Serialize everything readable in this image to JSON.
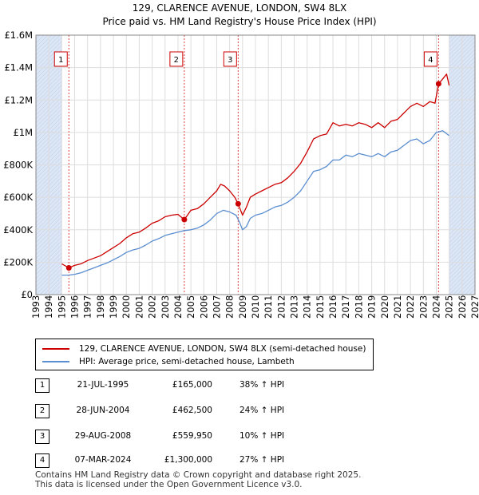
{
  "chart_data": {
    "type": "line",
    "title": "129, CLARENCE AVENUE, LONDON, SW4 8LX",
    "subtitle": "Price paid vs. HM Land Registry's House Price Index (HPI)",
    "xlim": [
      1993,
      2027
    ],
    "ylim": [
      0,
      1600000
    ],
    "y_ticks": [
      0,
      200000,
      400000,
      600000,
      800000,
      1000000,
      1200000,
      1400000,
      1600000
    ],
    "y_tick_labels": [
      "£0",
      "£200K",
      "£400K",
      "£600K",
      "£800K",
      "£1M",
      "£1.2M",
      "£1.4M",
      "£1.6M"
    ],
    "x_ticks": [
      1993,
      1994,
      1995,
      1996,
      1997,
      1998,
      1999,
      2000,
      2001,
      2002,
      2003,
      2004,
      2005,
      2006,
      2007,
      2008,
      2009,
      2010,
      2011,
      2012,
      2013,
      2014,
      2015,
      2016,
      2017,
      2018,
      2019,
      2020,
      2021,
      2022,
      2023,
      2024,
      2025,
      2026,
      2027
    ],
    "data_start": 1995.0,
    "data_end": 2025.0,
    "grid": true,
    "colors": {
      "property": "#cc0000",
      "hpi": "#5b8ed0",
      "shade": "#dce6f5",
      "sale_line": "#dd4444"
    },
    "series": [
      {
        "name": "129, CLARENCE AVENUE, LONDON, SW4 8LX (semi-detached house)",
        "x": [
          1995.0,
          1995.55,
          1996.0,
          1996.5,
          1997.0,
          1997.5,
          1998.0,
          1998.5,
          1999.0,
          1999.5,
          2000.0,
          2000.5,
          2001.0,
          2001.5,
          2002.0,
          2002.5,
          2003.0,
          2003.5,
          2004.0,
          2004.49,
          2005.0,
          2005.5,
          2006.0,
          2006.5,
          2007.0,
          2007.3,
          2007.6,
          2008.0,
          2008.4,
          2008.66,
          2009.0,
          2009.3,
          2009.6,
          2010.0,
          2010.5,
          2011.0,
          2011.5,
          2012.0,
          2012.5,
          2013.0,
          2013.5,
          2014.0,
          2014.5,
          2015.0,
          2015.5,
          2016.0,
          2016.5,
          2017.0,
          2017.5,
          2018.0,
          2018.5,
          2019.0,
          2019.5,
          2020.0,
          2020.5,
          2021.0,
          2021.5,
          2022.0,
          2022.5,
          2023.0,
          2023.5,
          2023.9,
          2024.18,
          2024.5,
          2024.8,
          2025.0
        ],
        "values": [
          190000,
          165000,
          180000,
          190000,
          210000,
          225000,
          240000,
          265000,
          290000,
          315000,
          350000,
          375000,
          385000,
          410000,
          440000,
          455000,
          480000,
          490000,
          495000,
          462500,
          520000,
          530000,
          560000,
          600000,
          640000,
          680000,
          670000,
          640000,
          600000,
          559950,
          490000,
          540000,
          600000,
          620000,
          640000,
          660000,
          680000,
          690000,
          720000,
          760000,
          810000,
          880000,
          960000,
          980000,
          990000,
          1060000,
          1040000,
          1050000,
          1040000,
          1060000,
          1050000,
          1030000,
          1060000,
          1030000,
          1070000,
          1080000,
          1120000,
          1160000,
          1180000,
          1160000,
          1190000,
          1180000,
          1300000,
          1330000,
          1360000,
          1290000
        ]
      },
      {
        "name": "HPI: Average price, semi-detached house, Lambeth",
        "x": [
          1995.0,
          1995.5,
          1996.0,
          1996.5,
          1997.0,
          1997.5,
          1998.0,
          1998.5,
          1999.0,
          1999.5,
          2000.0,
          2000.5,
          2001.0,
          2001.5,
          2002.0,
          2002.5,
          2003.0,
          2003.5,
          2004.0,
          2004.5,
          2005.0,
          2005.5,
          2006.0,
          2006.5,
          2007.0,
          2007.5,
          2008.0,
          2008.5,
          2008.8,
          2009.0,
          2009.3,
          2009.6,
          2010.0,
          2010.5,
          2011.0,
          2011.5,
          2012.0,
          2012.5,
          2013.0,
          2013.5,
          2014.0,
          2014.5,
          2015.0,
          2015.5,
          2016.0,
          2016.5,
          2017.0,
          2017.5,
          2018.0,
          2018.5,
          2019.0,
          2019.5,
          2020.0,
          2020.5,
          2021.0,
          2021.5,
          2022.0,
          2022.5,
          2023.0,
          2023.5,
          2024.0,
          2024.5,
          2025.0
        ],
        "values": [
          120000,
          120000,
          125000,
          135000,
          150000,
          165000,
          180000,
          195000,
          215000,
          235000,
          260000,
          275000,
          285000,
          305000,
          330000,
          345000,
          365000,
          375000,
          385000,
          395000,
          400000,
          410000,
          430000,
          460000,
          500000,
          520000,
          510000,
          490000,
          440000,
          400000,
          420000,
          470000,
          490000,
          500000,
          520000,
          540000,
          550000,
          570000,
          600000,
          640000,
          700000,
          760000,
          770000,
          790000,
          830000,
          830000,
          860000,
          850000,
          870000,
          860000,
          850000,
          870000,
          850000,
          880000,
          890000,
          920000,
          950000,
          960000,
          930000,
          950000,
          1000000,
          1010000,
          980000
        ]
      }
    ],
    "sales": [
      {
        "label": "1",
        "x": 1995.55,
        "value": 165000
      },
      {
        "label": "2",
        "x": 2004.49,
        "value": 462500
      },
      {
        "label": "3",
        "x": 2008.66,
        "value": 559950
      },
      {
        "label": "4",
        "x": 2024.18,
        "value": 1300000
      }
    ]
  },
  "legend": {
    "property_label": "129, CLARENCE AVENUE, LONDON, SW4 8LX (semi-detached house)",
    "hpi_label": "HPI: Average price, semi-detached house, Lambeth"
  },
  "transactions": [
    {
      "num": "1",
      "date": "21-JUL-1995",
      "price": "£165,000",
      "hpi": "38% ↑ HPI"
    },
    {
      "num": "2",
      "date": "28-JUN-2004",
      "price": "£462,500",
      "hpi": "24% ↑ HPI"
    },
    {
      "num": "3",
      "date": "29-AUG-2008",
      "price": "£559,950",
      "hpi": "10% ↑ HPI"
    },
    {
      "num": "4",
      "date": "07-MAR-2024",
      "price": "£1,300,000",
      "hpi": "27% ↑ HPI"
    }
  ],
  "footer": {
    "line1": "Contains HM Land Registry data © Crown copyright and database right 2025.",
    "line2": "This data is licensed under the Open Government Licence v3.0."
  }
}
